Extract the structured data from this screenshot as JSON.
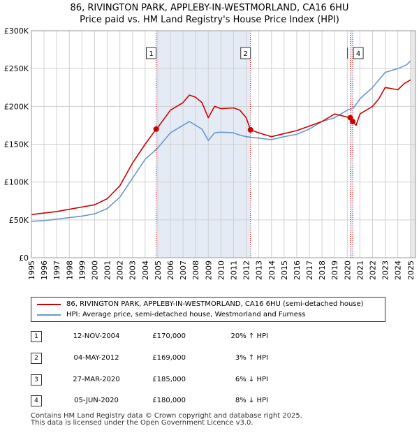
{
  "title": "86, RIVINGTON PARK, APPLEBY-IN-WESTMORLAND, CA16 6HU",
  "subtitle": "Price paid vs. HM Land Registry's House Price Index (HPI)",
  "colors": {
    "property": "#cc0000",
    "hpi": "#6699cc",
    "marker": "#cc0000",
    "shade": "#dde6f3"
  },
  "chart_data": {
    "type": "line",
    "title": "86, RIVINGTON PARK, APPLEBY-IN-WESTMORLAND, CA16 6HU",
    "subtitle": "Price paid vs. HM Land Registry's House Price Index (HPI)",
    "xlabel": "",
    "ylabel": "",
    "xlim": [
      1995,
      2025.4
    ],
    "ylim": [
      0,
      300000
    ],
    "y_ticks": [
      0,
      50000,
      100000,
      150000,
      200000,
      250000,
      300000
    ],
    "y_tick_labels": [
      "£0",
      "£50K",
      "£100K",
      "£150K",
      "£200K",
      "£250K",
      "£300K"
    ],
    "x_tick_labels": [
      "1995",
      "1996",
      "1997",
      "1998",
      "1999",
      "2000",
      "2001",
      "2002",
      "2003",
      "2004",
      "2005",
      "2006",
      "2007",
      "2008",
      "2009",
      "2010",
      "2011",
      "2012",
      "2013",
      "2014",
      "2015",
      "2016",
      "2017",
      "2018",
      "2019",
      "2020",
      "2021",
      "2022",
      "2023",
      "2024",
      "2025"
    ],
    "shaded_periods": [
      [
        2004.87,
        2012.34
      ],
      [
        2020.24,
        2020.43
      ]
    ],
    "series": [
      {
        "name": "86, RIVINGTON PARK, APPLEBY-IN-WESTMORLAND, CA16 6HU (semi-detached house)",
        "color": "#cc0000",
        "points": [
          [
            1995,
            57000
          ],
          [
            1996,
            59000
          ],
          [
            1997,
            61000
          ],
          [
            1998,
            64000
          ],
          [
            1999,
            67000
          ],
          [
            2000,
            70000
          ],
          [
            2001,
            78000
          ],
          [
            2002,
            95000
          ],
          [
            2003,
            125000
          ],
          [
            2004,
            150000
          ],
          [
            2004.87,
            170000
          ],
          [
            2005,
            172000
          ],
          [
            2006,
            195000
          ],
          [
            2007,
            205000
          ],
          [
            2007.5,
            215000
          ],
          [
            2008,
            212000
          ],
          [
            2008.5,
            205000
          ],
          [
            2009,
            185000
          ],
          [
            2009.5,
            200000
          ],
          [
            2010,
            197000
          ],
          [
            2011,
            198000
          ],
          [
            2011.5,
            195000
          ],
          [
            2012,
            185000
          ],
          [
            2012.34,
            169000
          ],
          [
            2013,
            165000
          ],
          [
            2014,
            160000
          ],
          [
            2015,
            164000
          ],
          [
            2016,
            168000
          ],
          [
            2017,
            174000
          ],
          [
            2018,
            180000
          ],
          [
            2019,
            190000
          ],
          [
            2020.24,
            185000
          ],
          [
            2020.43,
            180000
          ],
          [
            2020.7,
            175000
          ],
          [
            2021,
            190000
          ],
          [
            2022,
            200000
          ],
          [
            2022.5,
            210000
          ],
          [
            2023,
            225000
          ],
          [
            2024,
            222000
          ],
          [
            2024.5,
            230000
          ],
          [
            2025,
            235000
          ]
        ]
      },
      {
        "name": "HPI: Average price, semi-detached house, Westmorland and Furness",
        "color": "#6699cc",
        "points": [
          [
            1995,
            48000
          ],
          [
            1996,
            49000
          ],
          [
            1997,
            51000
          ],
          [
            1998,
            53000
          ],
          [
            1999,
            55000
          ],
          [
            2000,
            58000
          ],
          [
            2001,
            65000
          ],
          [
            2002,
            80000
          ],
          [
            2003,
            105000
          ],
          [
            2004,
            130000
          ],
          [
            2005,
            145000
          ],
          [
            2006,
            165000
          ],
          [
            2007,
            175000
          ],
          [
            2007.5,
            180000
          ],
          [
            2008,
            175000
          ],
          [
            2008.5,
            170000
          ],
          [
            2009,
            155000
          ],
          [
            2009.5,
            165000
          ],
          [
            2010,
            166000
          ],
          [
            2011,
            165000
          ],
          [
            2011.5,
            162000
          ],
          [
            2012,
            160000
          ],
          [
            2013,
            158000
          ],
          [
            2014,
            156000
          ],
          [
            2015,
            160000
          ],
          [
            2016,
            163000
          ],
          [
            2017,
            170000
          ],
          [
            2018,
            180000
          ],
          [
            2019,
            185000
          ],
          [
            2020,
            195000
          ],
          [
            2020.5,
            198000
          ],
          [
            2021,
            210000
          ],
          [
            2022,
            225000
          ],
          [
            2023,
            245000
          ],
          [
            2024,
            250000
          ],
          [
            2024.7,
            255000
          ],
          [
            2025,
            260000
          ]
        ]
      }
    ],
    "sale_markers": [
      {
        "label": "1",
        "x": 2004.87,
        "y": 170000
      },
      {
        "label": "2",
        "x": 2012.34,
        "y": 169000
      },
      {
        "label": "3",
        "x": 2020.24,
        "y": 185000
      },
      {
        "label": "4",
        "x": 2020.43,
        "y": 180000
      }
    ],
    "legend_position": "below"
  },
  "legend": {
    "property_label": "86, RIVINGTON PARK, APPLEBY-IN-WESTMORLAND, CA16 6HU (semi-detached house)",
    "hpi_label": "HPI: Average price, semi-detached house, Westmorland and Furness"
  },
  "sales": [
    {
      "num": "1",
      "date": "12-NOV-2004",
      "price": "£170,000",
      "hpi": "20% ↑ HPI"
    },
    {
      "num": "2",
      "date": "04-MAY-2012",
      "price": "£169,000",
      "hpi": "3% ↑ HPI"
    },
    {
      "num": "3",
      "date": "27-MAR-2020",
      "price": "£185,000",
      "hpi": "6% ↓ HPI"
    },
    {
      "num": "4",
      "date": "05-JUN-2020",
      "price": "£180,000",
      "hpi": "8% ↓ HPI"
    }
  ],
  "footer": {
    "line1": "Contains HM Land Registry data © Crown copyright and database right 2025.",
    "line2": "This data is licensed under the Open Government Licence v3.0."
  }
}
